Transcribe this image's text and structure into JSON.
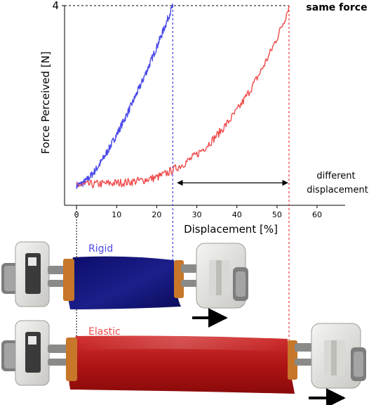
{
  "chart_data": {
    "type": "line",
    "xlabel": "Displacement [%]",
    "ylabel": "Force Perceived [N]",
    "xlim": [
      -3,
      67
    ],
    "ylim": [
      0,
      4
    ],
    "x_ticks": [
      "0",
      "10",
      "20",
      "30",
      "40",
      "50",
      "60"
    ],
    "x_tick_values": [
      0,
      10,
      20,
      30,
      40,
      50,
      60
    ],
    "y_ticks": [
      "4"
    ],
    "y_tick_values": [
      4
    ],
    "grid": false,
    "colors": {
      "rigid": "#4b4bea",
      "elastic": "#f04a4a"
    },
    "series": [
      {
        "key": "rigid",
        "x": [
          0,
          1,
          2,
          3,
          4,
          5,
          6,
          7,
          8,
          9,
          10,
          11,
          12,
          13,
          14,
          15,
          16,
          17,
          18,
          19,
          20,
          21,
          22,
          23,
          24
        ],
        "values": [
          0.1,
          0.12,
          0.17,
          0.25,
          0.35,
          0.46,
          0.59,
          0.73,
          0.88,
          1.04,
          1.2,
          1.37,
          1.54,
          1.72,
          1.9,
          2.09,
          2.28,
          2.48,
          2.68,
          2.89,
          3.1,
          3.32,
          3.54,
          3.77,
          4.0
        ]
      },
      {
        "key": "elastic",
        "x": [
          0,
          4,
          8,
          12,
          16,
          20,
          22,
          24,
          26,
          28,
          30,
          32,
          34,
          36,
          38,
          40,
          42,
          44,
          46,
          48,
          50,
          52,
          53
        ],
        "values": [
          0.1,
          0.12,
          0.14,
          0.16,
          0.2,
          0.27,
          0.34,
          0.43,
          0.53,
          0.64,
          0.77,
          0.92,
          1.09,
          1.28,
          1.49,
          1.72,
          1.98,
          2.27,
          2.58,
          2.92,
          3.3,
          3.72,
          4.0
        ]
      }
    ],
    "annotations": {
      "same_force": "same force",
      "different_line1": "different",
      "different_line2": "displacement"
    }
  },
  "labels": {
    "rigid": "Rigid",
    "elastic": "Elastic"
  }
}
